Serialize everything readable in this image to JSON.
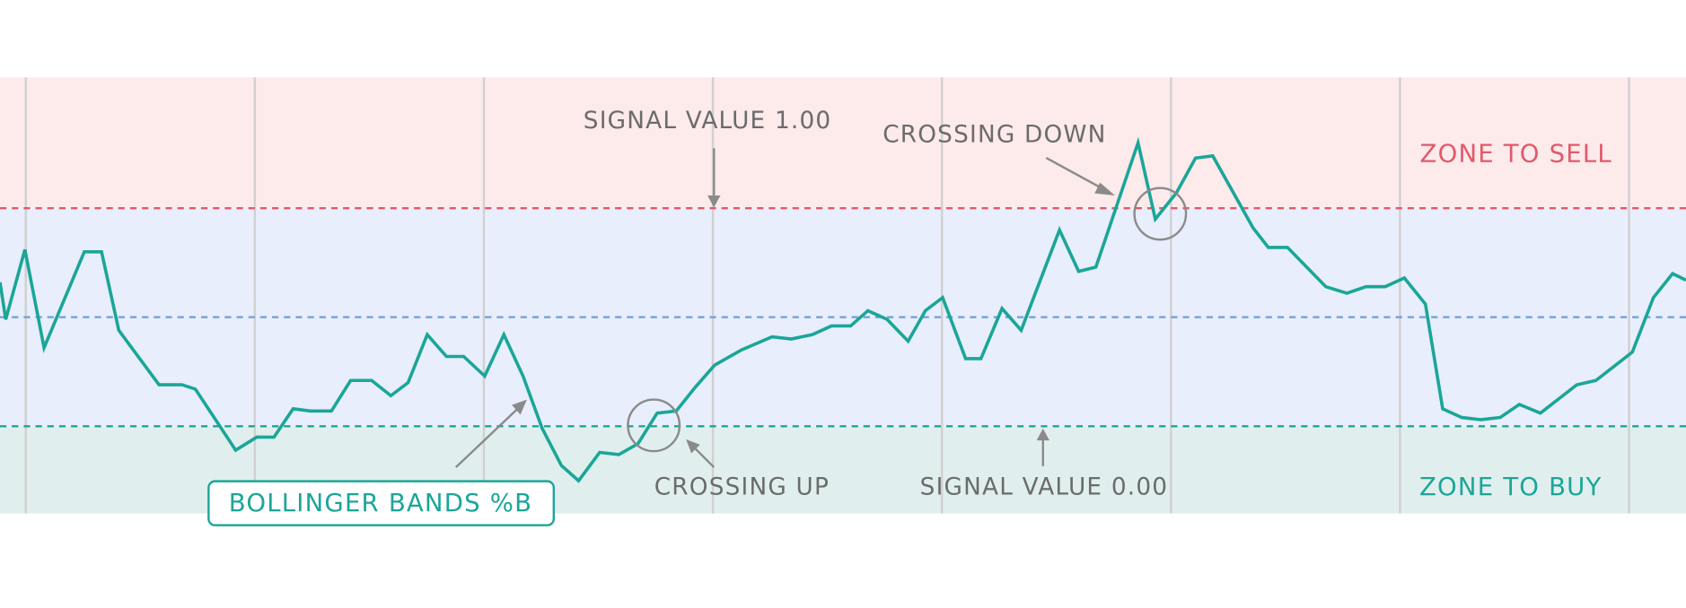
{
  "chart_data": {
    "type": "line",
    "annotations": {
      "signal_high": "SIGNAL VALUE 1.00",
      "crossing_down": "CROSSING DOWN",
      "zone_sell": "ZONE TO SELL",
      "indicator": "BOLLINGER BANDS %B",
      "crossing_up": "CROSSING UP",
      "signal_low": "SIGNAL VALUE 0.00",
      "zone_buy": "ZONE TO BUY"
    },
    "levels": [
      {
        "value": 1,
        "color": "#e05a6a"
      },
      {
        "value": 0.5,
        "color": "#6fa3dc"
      },
      {
        "value": 0,
        "color": "#1aa698"
      }
    ],
    "xlim": [
      0,
      88
    ],
    "ylim": [
      -0.4,
      1.6
    ],
    "x": [
      0,
      0.3,
      1.3,
      2.3,
      4.4,
      5.3,
      6.2,
      8.3,
      9.5,
      10.2,
      12.3,
      13.4,
      14.3,
      15.3,
      16.2,
      17.3,
      18.3,
      19.4,
      20.4,
      21.3,
      22.3,
      23.3,
      24.2,
      25.3,
      26.3,
      27.3,
      28.3,
      29.3,
      30.2,
      31.3,
      32.3,
      33.3,
      34.3,
      35.3,
      36.3,
      37.3,
      38.7,
      40.3,
      41.3,
      42.4,
      43.4,
      44.4,
      45.3,
      46.3,
      47.4,
      48.3,
      49.2,
      50.4,
      51.2,
      52.3,
      53.3,
      55.3,
      56.3,
      57.2,
      59.4,
      60.3,
      61.4,
      62.4,
      63.3,
      65.4,
      66.2,
      67.2,
      69.2,
      70.3,
      71.3,
      72.3,
      73.3,
      74.4,
      75.3,
      76.3,
      77.3,
      78.3,
      79.3,
      80.4,
      82.3,
      83.3,
      85.2,
      86.3,
      87.3,
      88
    ],
    "series": [
      {
        "color": "#1aa698",
        "values": [
          0.66,
          0.49,
          0.81,
          0.36,
          0.8,
          0.8,
          0.44,
          0.19,
          0.19,
          0.17,
          -0.11,
          -0.05,
          -0.05,
          0.08,
          0.07,
          0.07,
          0.21,
          0.21,
          0.14,
          0.2,
          0.42,
          0.32,
          0.32,
          0.23,
          0.42,
          0.23,
          -0.01,
          -0.18,
          -0.25,
          -0.12,
          -0.13,
          -0.08,
          0.06,
          0.07,
          0.18,
          0.28,
          0.35,
          0.41,
          0.4,
          0.42,
          0.46,
          0.46,
          0.53,
          0.49,
          0.39,
          0.53,
          0.59,
          0.31,
          0.31,
          0.54,
          0.44,
          0.9,
          0.71,
          0.73,
          1.3,
          0.95,
          1.07,
          1.23,
          1.24,
          0.91,
          0.82,
          0.82,
          0.64,
          0.61,
          0.64,
          0.64,
          0.68,
          0.56,
          0.08,
          0.04,
          0.03,
          0.04,
          0.1,
          0.06,
          0.19,
          0.21,
          0.34,
          0.59,
          0.7,
          0.67
        ]
      }
    ]
  }
}
